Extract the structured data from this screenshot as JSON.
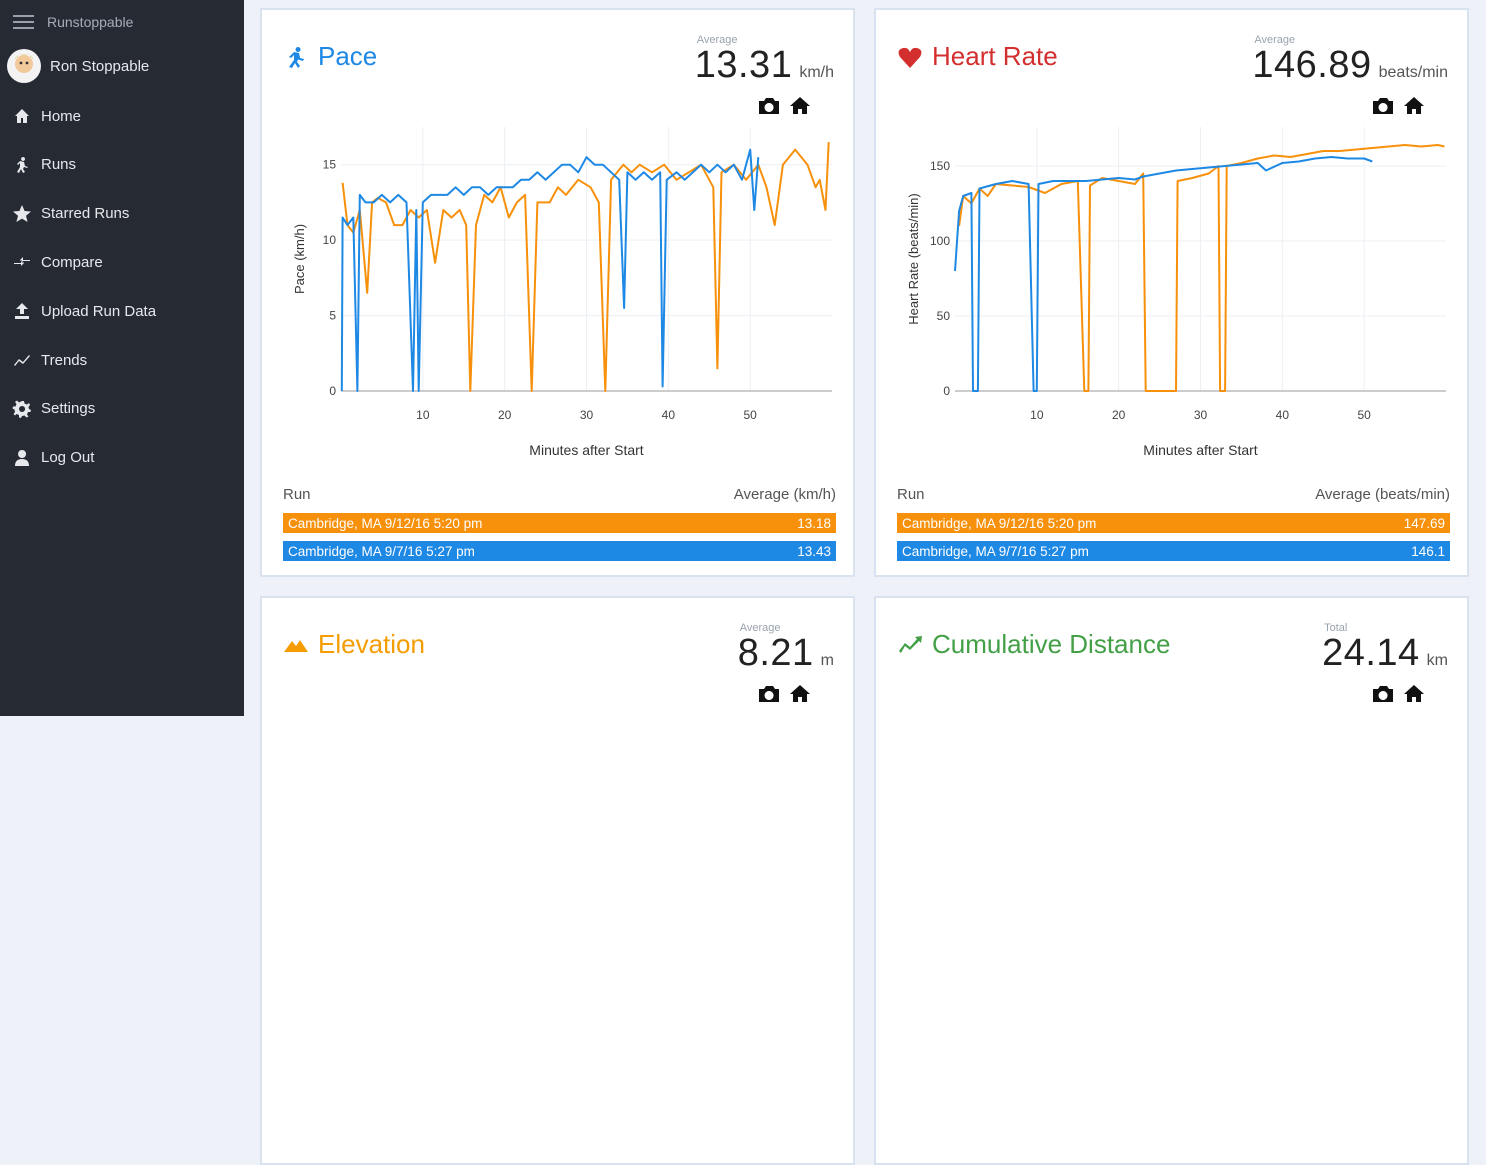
{
  "sidebar": {
    "app_name": "Runstoppable",
    "user_name": "Ron Stoppable",
    "nav": [
      "Home",
      "Runs",
      "Starred Runs",
      "Compare",
      "Upload Run Data",
      "Trends",
      "Settings",
      "Log Out"
    ]
  },
  "chart_data": [
    {
      "type": "line",
      "title": "Pace",
      "title_color": "#1e88e5",
      "stat_label": "Average",
      "stat_value": "13.31",
      "stat_unit": "km/h",
      "x_label": "Minutes after Start",
      "y_label": "Pace (km/h)",
      "xlim": [
        0,
        60
      ],
      "xticks": [
        10,
        20,
        30,
        40,
        50
      ],
      "ylim": [
        0,
        17.5
      ],
      "yticks": [
        0,
        5,
        10,
        15
      ],
      "grid": true,
      "table_headers": [
        "Run",
        "Average (km/h)"
      ],
      "series": [
        {
          "name": "Cambridge, MA 9/12/16 5:20 pm",
          "color": "#f7900a",
          "average": "13.18",
          "x": [
            0.2,
            0.8,
            1.5,
            2.3,
            3.2,
            3.8,
            4.5,
            5.5,
            6.5,
            7.5,
            8.5,
            9.5,
            10.5,
            11.5,
            12.5,
            13.5,
            14.5,
            15.3,
            15.8,
            16.5,
            17.5,
            18.5,
            19.5,
            20.5,
            21.5,
            22.5,
            23.3,
            24,
            25.5,
            26.5,
            27.5,
            29,
            30.5,
            31.5,
            32.3,
            33,
            34.5,
            35.5,
            36.5,
            38,
            39.5,
            41,
            42.5,
            44,
            45.5,
            46,
            46.5,
            48,
            49.5,
            51,
            52,
            53,
            54,
            55.5,
            57,
            58,
            58.5,
            59.2,
            59.6
          ],
          "values": [
            13.8,
            11,
            10.5,
            12,
            6.5,
            12.5,
            12.8,
            12.5,
            11,
            11,
            12,
            11.5,
            12,
            8.5,
            12,
            11.5,
            12,
            11,
            0,
            11,
            13,
            12.5,
            13.5,
            11.5,
            12.5,
            13,
            0,
            12.5,
            12.5,
            13.5,
            13,
            14,
            13.5,
            12.5,
            0,
            14,
            15,
            14.5,
            15,
            14.5,
            15,
            14,
            14.5,
            15,
            13.5,
            1.5,
            14.5,
            15,
            14,
            15,
            13.5,
            11,
            15,
            16,
            15,
            13.5,
            14,
            12,
            16.5
          ]
        },
        {
          "name": "Cambridge, MA 9/7/16 5:27 pm",
          "color": "#1e88e5",
          "average": "13.43",
          "x": [
            0.1,
            0.2,
            0.8,
            1.5,
            2,
            2.3,
            3,
            4,
            5,
            6,
            7,
            8,
            8.8,
            9.2,
            9.5,
            10,
            11,
            12,
            13,
            14,
            15,
            16,
            17,
            18,
            19,
            20,
            21,
            22,
            23,
            24,
            25,
            26,
            27,
            28,
            29,
            30,
            31,
            32,
            33,
            34,
            34.6,
            35,
            36,
            37,
            38,
            39,
            39.3,
            39.8,
            41,
            42,
            43,
            44,
            45,
            46,
            47,
            48,
            49,
            50,
            50.5,
            51
          ],
          "values": [
            0,
            11.5,
            11,
            11.5,
            0,
            13,
            12.5,
            12.5,
            13,
            12.5,
            13,
            12.5,
            0,
            12,
            0,
            12.5,
            13,
            13,
            13,
            13.5,
            13,
            13.5,
            13.5,
            13,
            13.5,
            13.5,
            13.5,
            14,
            14,
            14.5,
            14,
            14.5,
            15,
            15,
            14.5,
            15.5,
            15,
            15,
            14.5,
            14,
            5.5,
            14.5,
            14,
            14.5,
            14,
            14.5,
            0.3,
            14,
            14.5,
            14,
            14.5,
            15,
            14.5,
            15,
            14.5,
            15,
            14,
            16,
            12,
            15.5
          ]
        }
      ]
    },
    {
      "type": "line",
      "title": "Heart Rate",
      "title_color": "#d32f2f",
      "stat_label": "Average",
      "stat_value": "146.89",
      "stat_unit": "beats/min",
      "x_label": "Minutes after Start",
      "y_label": "Heart Rate (beats/min)",
      "xlim": [
        0,
        60
      ],
      "xticks": [
        10,
        20,
        30,
        40,
        50
      ],
      "ylim": [
        0,
        176
      ],
      "yticks": [
        0,
        50,
        100,
        150
      ],
      "grid": true,
      "table_headers": [
        "Run",
        "Average (beats/min)"
      ],
      "series": [
        {
          "name": "Cambridge, MA 9/12/16 5:20 pm",
          "color": "#f7900a",
          "average": "147.69",
          "x": [
            0.5,
            1,
            2,
            3,
            4,
            5,
            7,
            9,
            11,
            13,
            15,
            15.8,
            16.3,
            16.5,
            18,
            20,
            22,
            23,
            23.3,
            27,
            27.2,
            29,
            31,
            32.2,
            32.4,
            33,
            33.2,
            35,
            37,
            39,
            41,
            43,
            45,
            47,
            49,
            51,
            53,
            55,
            57,
            59,
            59.8
          ],
          "values": [
            110,
            130,
            125,
            135,
            130,
            138,
            137,
            136,
            132,
            138,
            140,
            0,
            0,
            137,
            142,
            140,
            138,
            145,
            0,
            0,
            140,
            142,
            145,
            150,
            0,
            0,
            150,
            152,
            155,
            157,
            156,
            158,
            160,
            160,
            161,
            162,
            163,
            164,
            163,
            164,
            163
          ]
        },
        {
          "name": "Cambridge, MA 9/7/16 5:27 pm",
          "color": "#1e88e5",
          "average": "146.1",
          "x": [
            0,
            0.5,
            1,
            2,
            2.2,
            2.8,
            3,
            5,
            7,
            9,
            9.6,
            10,
            10.2,
            12,
            14,
            16,
            18,
            20,
            22,
            23,
            25,
            27,
            29,
            31,
            33,
            35,
            37,
            38,
            40,
            42,
            44,
            46,
            48,
            50,
            51
          ],
          "values": [
            80,
            120,
            130,
            132,
            0,
            0,
            135,
            138,
            140,
            138,
            0,
            0,
            138,
            140,
            140,
            140,
            141,
            142,
            141,
            143,
            145,
            147,
            148,
            149,
            150,
            151,
            152,
            147,
            152,
            153,
            155,
            156,
            155,
            155,
            153
          ]
        }
      ]
    }
  ],
  "cards": [
    {
      "title": "Elevation",
      "title_color": "#f59d00",
      "stat_label": "Average",
      "stat_value": "8.21",
      "stat_unit": "m"
    },
    {
      "title": "Cumulative Distance",
      "title_color": "#43a047",
      "stat_label": "Total",
      "stat_value": "24.14",
      "stat_unit": "km"
    }
  ]
}
